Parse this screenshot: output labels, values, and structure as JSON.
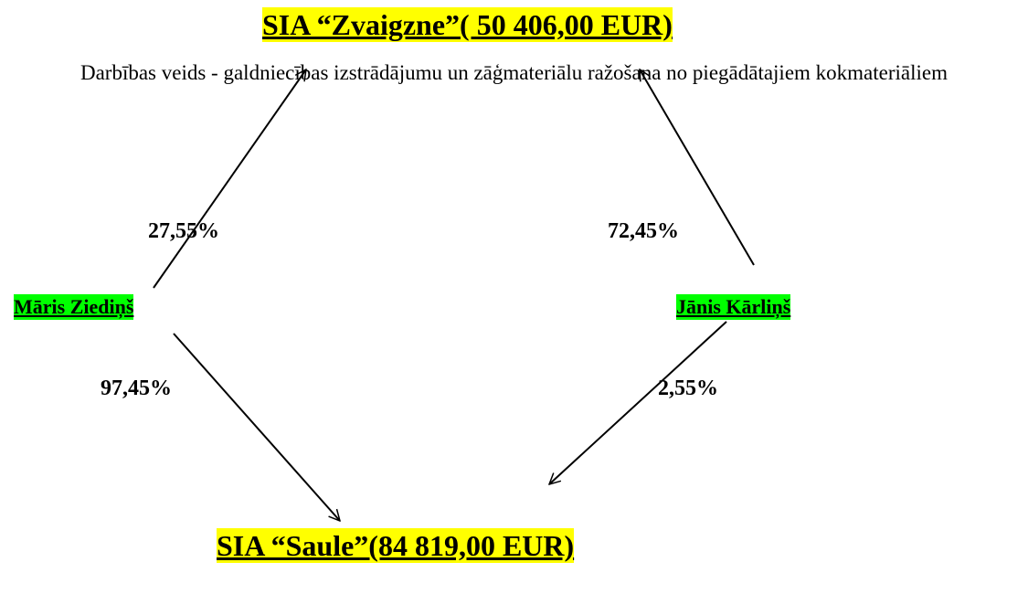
{
  "title": "SIA “Zvaigzne”( 50 406,00 EUR)",
  "description": "Darbības veids - galdniecības izstrādājumu un zāģmateriālu ražošana no piegādātajiem kokmateriāliem",
  "nodes": [
    {
      "label": "Māris Ziediņš"
    },
    {
      "label": "Jānis Kārliņš"
    },
    {
      "label": "SIA “Saule”(84 819,00 EUR)"
    }
  ],
  "edges": [
    {
      "label": "27,55%"
    },
    {
      "label": "72,45%"
    },
    {
      "label": "97,45%"
    },
    {
      "label": "2,55%"
    }
  ]
}
